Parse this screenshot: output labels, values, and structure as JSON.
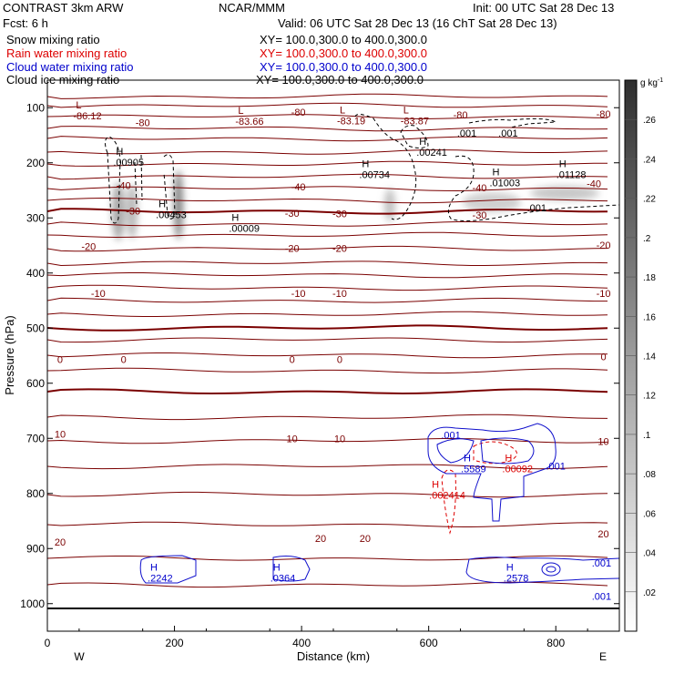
{
  "header": {
    "title_left": "CONTRAST  3km ARW",
    "title_center": "NCAR/MMM",
    "init": "Init: 00 UTC Sat 28 Dec 13",
    "fcst": "Fcst:      6 h",
    "valid": "Valid: 06 UTC Sat 28 Dec 13 (16 ChT Sat 28 Dec 13)",
    "fields": [
      {
        "label": "Snow mixing ratio",
        "xy": "XY= 100.0,300.0 to 400.0,300.0",
        "color": "#000000"
      },
      {
        "label": "Rain water mixing ratio",
        "xy": "XY= 100.0,300.0 to 400.0,300.0",
        "color": "#dd0000"
      },
      {
        "label": "Cloud water mixing ratio",
        "xy": "XY= 100.0,300.0 to 400.0,300.0",
        "color": "#0000cc"
      },
      {
        "label": "Cloud ice mixing ratio",
        "xy": "XY= 100.0,300.0 to 400.0,300.0",
        "color": "#000000"
      }
    ]
  },
  "chart_data": {
    "type": "contour",
    "xlabel": "Distance (km)",
    "ylabel": "Pressure (hPa)",
    "xlim": [
      0,
      900
    ],
    "ylim": [
      1050,
      50
    ],
    "xticks": [
      0,
      200,
      400,
      600,
      800
    ],
    "yticks": [
      100,
      200,
      300,
      400,
      500,
      600,
      700,
      800,
      900,
      1000
    ],
    "x_end_labels": {
      "left": "W",
      "right": "E"
    },
    "colorbar": {
      "unit_label": "g kg",
      "unit_exponent": "-1",
      "ticks": [
        ".02",
        ".04",
        ".06",
        ".08",
        ".1",
        ".12",
        ".14",
        ".16",
        ".18",
        ".2",
        ".22",
        ".24",
        ".26"
      ],
      "vmin": 0,
      "vmax": 0.28
    },
    "temperature_contours": {
      "color": "#7a0000",
      "labels": [
        {
          "text": "-80",
          "x": 150,
          "p": 127
        },
        {
          "text": "-80",
          "x": 395,
          "p": 108
        },
        {
          "text": "-80",
          "x": 650,
          "p": 113
        },
        {
          "text": "-80",
          "x": 875,
          "p": 111
        },
        {
          "text": "-40",
          "x": 395,
          "p": 243
        },
        {
          "text": "-40",
          "x": 680,
          "p": 245
        },
        {
          "text": "-40",
          "x": 860,
          "p": 238
        },
        {
          "text": "-40",
          "x": 120,
          "p": 241
        },
        {
          "text": "-30",
          "x": 135,
          "p": 287
        },
        {
          "text": "-30",
          "x": 385,
          "p": 291
        },
        {
          "text": "-30",
          "x": 460,
          "p": 292
        },
        {
          "text": "-30",
          "x": 680,
          "p": 295
        },
        {
          "text": "-20",
          "x": 65,
          "p": 352
        },
        {
          "text": "-20",
          "x": 385,
          "p": 355
        },
        {
          "text": "-20",
          "x": 460,
          "p": 355
        },
        {
          "text": "-20",
          "x": 875,
          "p": 349
        },
        {
          "text": "-10",
          "x": 80,
          "p": 437
        },
        {
          "text": "-10",
          "x": 395,
          "p": 437
        },
        {
          "text": "-10",
          "x": 460,
          "p": 437
        },
        {
          "text": "-10",
          "x": 875,
          "p": 437
        },
        {
          "text": "0",
          "x": 20,
          "p": 557
        },
        {
          "text": "0",
          "x": 120,
          "p": 557
        },
        {
          "text": "0",
          "x": 385,
          "p": 557
        },
        {
          "text": "0",
          "x": 460,
          "p": 557
        },
        {
          "text": "0",
          "x": 875,
          "p": 552
        },
        {
          "text": "10",
          "x": 20,
          "p": 692
        },
        {
          "text": "10",
          "x": 385,
          "p": 700
        },
        {
          "text": "10",
          "x": 460,
          "p": 700
        },
        {
          "text": "10",
          "x": 875,
          "p": 705
        },
        {
          "text": "20",
          "x": 20,
          "p": 888
        },
        {
          "text": "20",
          "x": 430,
          "p": 881
        },
        {
          "text": "20",
          "x": 500,
          "p": 881
        },
        {
          "text": "20",
          "x": 875,
          "p": 873
        }
      ]
    },
    "extrema": [
      {
        "kind": "L",
        "value": "-86.12",
        "x": 45,
        "p": 118,
        "color": "#7a0000"
      },
      {
        "kind": "L",
        "value": "-83.66",
        "x": 300,
        "p": 128,
        "color": "#7a0000"
      },
      {
        "kind": "L",
        "value": "-83.19",
        "x": 460,
        "p": 127,
        "color": "#7a0000"
      },
      {
        "kind": "L",
        "value": "-83.87",
        "x": 560,
        "p": 127,
        "color": "#7a0000"
      },
      {
        "kind": "H",
        "value": ".00241",
        "x": 585,
        "p": 184,
        "color": "#000000"
      },
      {
        "kind": "H",
        "value": ".00905",
        "x": 108,
        "p": 202,
        "color": "#000000"
      },
      {
        "kind": "H",
        "value": ".00734",
        "x": 495,
        "p": 224,
        "color": "#000000"
      },
      {
        "kind": "H",
        "value": ".01003",
        "x": 700,
        "p": 239,
        "color": "#000000"
      },
      {
        "kind": "H",
        "value": ".01128",
        "x": 805,
        "p": 224,
        "color": "#000000"
      },
      {
        "kind": "H",
        "value": ".00453",
        "x": 175,
        "p": 297,
        "color": "#000000"
      },
      {
        "kind": "H",
        "value": ".00009",
        "x": 290,
        "p": 322,
        "color": "#000000"
      },
      {
        "kind": "H",
        "value": ".5589",
        "x": 655,
        "p": 758,
        "color": "#0000cc"
      },
      {
        "kind": "H",
        "value": ".00092",
        "x": 720,
        "p": 758,
        "color": "#dd0000"
      },
      {
        "kind": "H",
        "value": ".002414",
        "x": 605,
        "p": 806,
        "color": "#dd0000"
      },
      {
        "kind": "H",
        "value": ".2242",
        "x": 162,
        "p": 957,
        "color": "#0000cc"
      },
      {
        "kind": "H",
        "value": ".0364",
        "x": 355,
        "p": 957,
        "color": "#0000cc"
      },
      {
        "kind": "H",
        "value": ".2578",
        "x": 722,
        "p": 957,
        "color": "#0000cc"
      }
    ],
    "contour_labels": [
      {
        "text": ".001",
        "x": 660,
        "p": 146,
        "color": "#000000"
      },
      {
        "text": ".001",
        "x": 725,
        "p": 146,
        "color": "#000000"
      },
      {
        "text": ".001",
        "x": 770,
        "p": 281,
        "color": "#000000"
      },
      {
        "text": ".001",
        "x": 635,
        "p": 694,
        "color": "#0000cc"
      },
      {
        "text": ".001",
        "x": 800,
        "p": 750,
        "color": "#0000cc"
      },
      {
        "text": ".001",
        "x": 872,
        "p": 926,
        "color": "#0000cc"
      },
      {
        "text": ".001",
        "x": 872,
        "p": 986,
        "color": "#0000cc"
      }
    ]
  }
}
